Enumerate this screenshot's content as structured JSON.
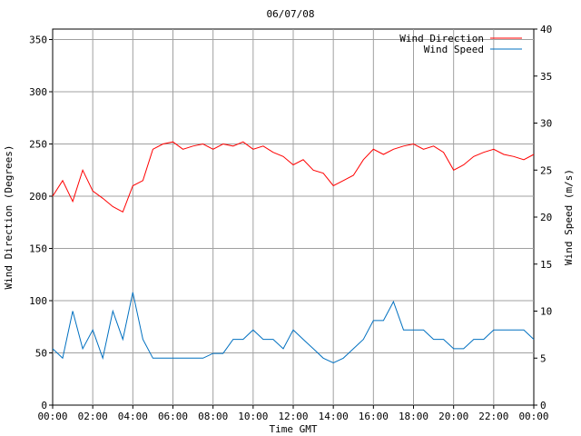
{
  "chart_data": {
    "type": "line",
    "title": "06/07/08",
    "xlabel": "Time GMT",
    "ylabel_left": "Wind Direction (Degrees)",
    "ylabel_right": "Wind Speed (m/s)",
    "x_ticks": [
      "00:00",
      "02:00",
      "04:00",
      "06:00",
      "08:00",
      "10:00",
      "12:00",
      "14:00",
      "16:00",
      "18:00",
      "20:00",
      "22:00",
      "00:00"
    ],
    "x_range_hours": [
      0,
      24
    ],
    "y_left_ticks": [
      "0",
      "50",
      "100",
      "150",
      "200",
      "250",
      "300",
      "350"
    ],
    "y_left_range": [
      0,
      360
    ],
    "y_right_ticks": [
      "0",
      "5",
      "10",
      "15",
      "20",
      "25",
      "30",
      "35",
      "40"
    ],
    "y_right_range": [
      0,
      40
    ],
    "grid": true,
    "legend_position": "top-right",
    "series": [
      {
        "name": "Wind Direction",
        "axis": "left",
        "color": "#ff0000",
        "x_hours": [
          0,
          0.5,
          1,
          1.5,
          2,
          2.5,
          3,
          3.5,
          4,
          4.5,
          5,
          5.5,
          6,
          6.5,
          7,
          7.5,
          8,
          8.5,
          9,
          9.5,
          10,
          10.5,
          11,
          11.5,
          12,
          12.5,
          13,
          13.5,
          14,
          14.5,
          15,
          15.5,
          16,
          16.5,
          17,
          17.5,
          18,
          18.5,
          19,
          19.5,
          20,
          20.5,
          21,
          21.5,
          22,
          22.5,
          23,
          23.5,
          24
        ],
        "values": [
          200,
          215,
          195,
          225,
          205,
          198,
          190,
          185,
          210,
          215,
          245,
          250,
          252,
          245,
          248,
          250,
          245,
          250,
          248,
          252,
          245,
          248,
          242,
          238,
          230,
          235,
          225,
          222,
          210,
          215,
          220,
          235,
          245,
          240,
          245,
          248,
          250,
          245,
          248,
          242,
          225,
          230,
          238,
          242,
          245,
          240,
          238,
          235,
          240
        ]
      },
      {
        "name": "Wind Speed",
        "axis": "right",
        "color": "#0070c0",
        "x_hours": [
          0,
          0.5,
          1,
          1.5,
          2,
          2.5,
          3,
          3.5,
          4,
          4.5,
          5,
          5.5,
          6,
          6.5,
          7,
          7.5,
          8,
          8.5,
          9,
          9.5,
          10,
          10.5,
          11,
          11.5,
          12,
          12.5,
          13,
          13.5,
          14,
          14.5,
          15,
          15.5,
          16,
          16.5,
          17,
          17.5,
          18,
          18.5,
          19,
          19.5,
          20,
          20.5,
          21,
          21.5,
          22,
          22.5,
          23,
          23.5,
          24
        ],
        "values": [
          6,
          5,
          10,
          6,
          8,
          5,
          10,
          7,
          12,
          7,
          5,
          5,
          5,
          5,
          5,
          5,
          5.5,
          5.5,
          7,
          7,
          8,
          7,
          7,
          6,
          8,
          7,
          6,
          5,
          4.5,
          5,
          6,
          7,
          9,
          9,
          11,
          8,
          8,
          8,
          7,
          7,
          6,
          6,
          7,
          7,
          8,
          8,
          8,
          8,
          7
        ]
      }
    ]
  }
}
